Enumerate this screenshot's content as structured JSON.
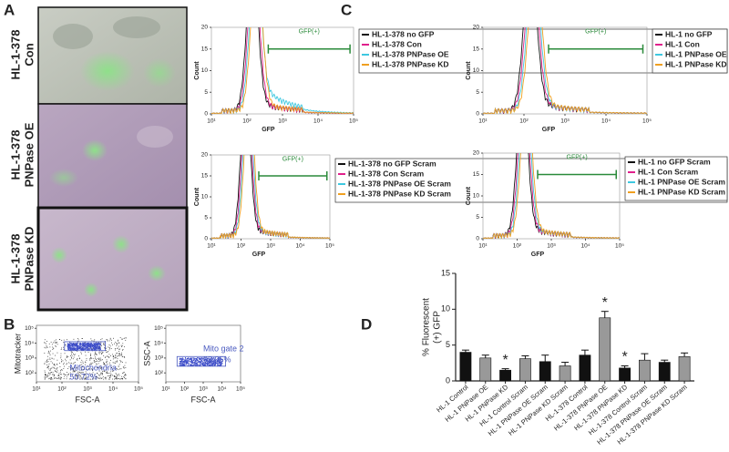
{
  "panels": {
    "a": {
      "label": "A",
      "rows": [
        [
          "HL-1-378",
          "Con"
        ],
        [
          "HL-1-378",
          "PNPase OE"
        ],
        [
          "HL-1-378",
          "PNPase KD"
        ]
      ]
    },
    "c": {
      "label": "C",
      "y_label": "Count",
      "x_label": "GFP",
      "gate_label": "GFP(+)",
      "yticks": [
        0,
        5,
        10,
        15,
        20
      ],
      "xticks": [
        {
          "value": 1,
          "label": "10¹"
        },
        {
          "value": 2,
          "label": "10²"
        },
        {
          "value": 3,
          "label": "10³"
        },
        {
          "value": 4,
          "label": "10⁴"
        },
        {
          "value": 5,
          "label": "10⁵"
        }
      ],
      "colors": [
        "#111111",
        "#e0208c",
        "#3ec8e0",
        "#f0a020"
      ],
      "histograms": [
        {
          "legend": [
            "HL-1-378 no GFP",
            "HL-1-378 Con",
            "HL-1-378 PNPase OE",
            "HL-1-378 PNPase KD"
          ]
        },
        {
          "legend": [
            "HL-1 no GFP",
            "HL-1 Con",
            "HL-1 PNPase OE",
            "HL-1 PNPase KD"
          ]
        },
        {
          "legend": [
            "HL-1-378 no GFP Scram",
            "HL-1-378 Con Scram",
            "HL-1-378 PNPase OE Scram",
            "HL-1-378 PNPase KD Scram"
          ]
        },
        {
          "legend": [
            "HL-1 no GFP Scram",
            "HL-1 Con Scram",
            "HL-1 PNPase OE Scram",
            "HL-1 PNPase KD Scram"
          ]
        }
      ]
    },
    "b": {
      "label": "B",
      "xticks": [
        {
          "value": 1,
          "label": "10¹"
        },
        {
          "value": 2,
          "label": "10²"
        },
        {
          "value": 3,
          "label": "10³"
        },
        {
          "value": 4,
          "label": "10⁴"
        },
        {
          "value": 5,
          "label": "10⁵"
        }
      ],
      "yticks": [
        {
          "value": 2,
          "label": "10²"
        },
        {
          "value": 3,
          "label": "10³"
        },
        {
          "value": 4,
          "label": "10⁴"
        },
        {
          "value": 5,
          "label": "10⁵"
        }
      ],
      "plots": [
        {
          "y_label": "Mitotracker",
          "x_label": "FSC-A",
          "gate": "Mitochondria",
          "percent": "50.72%"
        },
        {
          "y_label": "SSC-A",
          "x_label": "FSC-A",
          "gate": "Mito gate 2",
          "percent": "93.05%"
        }
      ]
    }
  },
  "chart_data": {
    "type": "bar",
    "label": "D",
    "y_label": [
      "% Fluorescent",
      "(+) GFP"
    ],
    "categories": [
      "HL-1 Control",
      "HL-1 PNPase OE",
      "HL-1 PNPase KD",
      "HL-1 Control Scram",
      "HL-1 PNPase OE Scram",
      "HL-1 PNPase KD Scram",
      "HL-1-378 Control",
      "HL-1-378 PNPase OE",
      "HL-1-378 PNPase KD",
      "HL-1-378 Control Scram",
      "HL-1-378 PNPase OE Scram",
      "HL-1-378 PNPase KD Scram"
    ],
    "values": [
      4.0,
      3.2,
      1.5,
      3.1,
      2.7,
      2.1,
      3.6,
      8.8,
      1.8,
      2.9,
      2.6,
      3.4
    ],
    "errors": [
      0.3,
      0.4,
      0.2,
      0.4,
      0.9,
      0.5,
      0.7,
      0.9,
      0.3,
      0.9,
      0.3,
      0.5
    ],
    "colors": [
      "#111111",
      "#999999"
    ],
    "ylim": [
      0,
      15
    ],
    "yticks": [
      0,
      5,
      10,
      15
    ],
    "annotations": [
      {
        "text": "*",
        "category": "HL-1 PNPase KD"
      },
      {
        "text": "*",
        "category": "HL-1-378 PNPase OE"
      },
      {
        "text": "*",
        "category": "HL-1-378 PNPase KD"
      }
    ]
  }
}
